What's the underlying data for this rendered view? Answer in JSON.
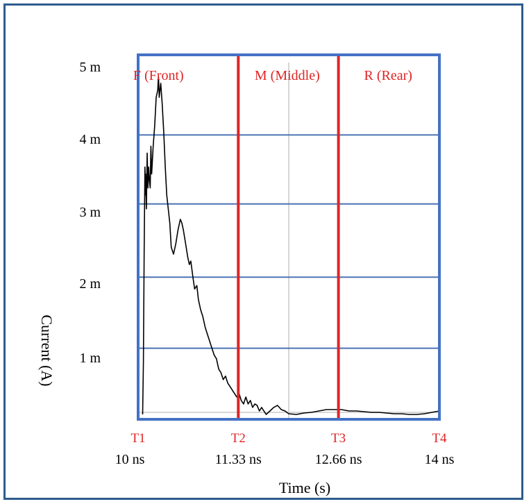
{
  "colors": {
    "frame": "#2e5c8e",
    "plot_border": "#4472c4",
    "gridline_blue": "#4a74b4",
    "gridline_gray": "#c8c8c8",
    "region_line": "#e02424",
    "region_label": "#e02424",
    "trace": "#000000",
    "tick_text": "#000000"
  },
  "chart_data": {
    "type": "line",
    "xlabel": "Time (s)",
    "ylabel": "Current (A)",
    "xlim": [
      10,
      14
    ],
    "ylim": [
      0,
      5.1
    ],
    "y_ticks": [
      {
        "value": 1,
        "label": "1 m"
      },
      {
        "value": 2,
        "label": "2 m"
      },
      {
        "value": 3,
        "label": "3 m"
      },
      {
        "value": 4,
        "label": "4 m"
      },
      {
        "value": 5,
        "label": "5 m"
      }
    ],
    "y_gridlines": [
      1.0,
      2.02,
      3.07,
      4.06,
      5.1
    ],
    "markers": [
      {
        "name": "T1",
        "x": 10,
        "label": "10 ns"
      },
      {
        "name": "T2",
        "x": 11.33,
        "label": "11.33 ns"
      },
      {
        "name": "T3",
        "x": 12.66,
        "label": "12.66 ns"
      },
      {
        "name": "T4",
        "x": 14,
        "label": "14 ns"
      }
    ],
    "regions": [
      {
        "label": "F (Front)",
        "x": 10.27
      },
      {
        "label": "M (Middle)",
        "x": 11.98
      },
      {
        "label": "R (Rear)",
        "x": 13.32
      }
    ],
    "series": [
      {
        "x": [
          10.06,
          10.07,
          10.08,
          10.09,
          10.1,
          10.1,
          10.11,
          10.12,
          10.13,
          10.14,
          10.15,
          10.16,
          10.17,
          10.18,
          10.2,
          10.22,
          10.24,
          10.26,
          10.27,
          10.28,
          10.3,
          10.32,
          10.34,
          10.36,
          10.38,
          10.4,
          10.42,
          10.44,
          10.47,
          10.5,
          10.53,
          10.56,
          10.58,
          10.6,
          10.63,
          10.66,
          10.68,
          10.7,
          10.73,
          10.75,
          10.78,
          10.8,
          10.83,
          10.86,
          10.89,
          10.92,
          10.95,
          10.98,
          11.01,
          11.04,
          11.07,
          11.1,
          11.13,
          11.16,
          11.19,
          11.22,
          11.25,
          11.28,
          11.31,
          11.34,
          11.37,
          11.4,
          11.43,
          11.46,
          11.49,
          11.52,
          11.55,
          11.58,
          11.61,
          11.64,
          11.67,
          11.7,
          11.75,
          11.8,
          11.85,
          11.9,
          11.95,
          12.0,
          12.1,
          12.2,
          12.3,
          12.4,
          12.5,
          12.6,
          12.7,
          12.8,
          12.9,
          13.0,
          13.1,
          13.2,
          13.3,
          13.4,
          13.5,
          13.6,
          13.7,
          13.8,
          13.9,
          14.0
        ],
        "y": [
          0.05,
          0.8,
          2.4,
          3.6,
          3.2,
          3.5,
          3.0,
          3.8,
          3.3,
          3.6,
          3.4,
          3.3,
          3.9,
          3.5,
          3.9,
          4.2,
          4.6,
          4.7,
          4.9,
          4.6,
          4.8,
          4.5,
          4.1,
          3.6,
          3.2,
          3.0,
          2.8,
          2.45,
          2.35,
          2.5,
          2.7,
          2.85,
          2.8,
          2.7,
          2.5,
          2.3,
          2.2,
          2.25,
          2.0,
          1.85,
          1.9,
          1.7,
          1.55,
          1.45,
          1.3,
          1.2,
          1.1,
          1.0,
          0.9,
          0.85,
          0.7,
          0.65,
          0.55,
          0.6,
          0.5,
          0.45,
          0.4,
          0.35,
          0.3,
          0.35,
          0.25,
          0.2,
          0.3,
          0.2,
          0.25,
          0.15,
          0.2,
          0.18,
          0.1,
          0.15,
          0.1,
          0.05,
          0.1,
          0.15,
          0.18,
          0.12,
          0.1,
          0.06,
          0.05,
          0.07,
          0.08,
          0.1,
          0.12,
          0.12,
          0.12,
          0.1,
          0.1,
          0.09,
          0.08,
          0.08,
          0.07,
          0.06,
          0.06,
          0.05,
          0.05,
          0.06,
          0.08,
          0.1
        ]
      }
    ],
    "grid": true,
    "center_gridline_x": 12.0
  }
}
